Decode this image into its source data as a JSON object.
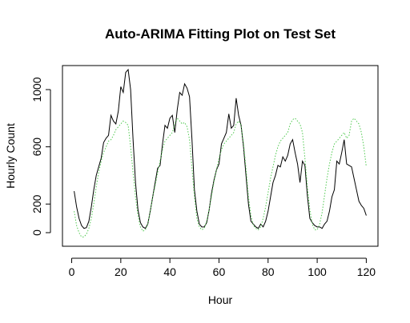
{
  "chart_data": {
    "type": "line",
    "title": "Auto-ARIMA Fitting Plot on Test Set",
    "x_label": "Hour",
    "y_label": "Hourly Count",
    "x": [
      1,
      2,
      3,
      4,
      5,
      6,
      7,
      8,
      9,
      10,
      11,
      12,
      13,
      14,
      15,
      16,
      17,
      18,
      19,
      20,
      21,
      22,
      23,
      24,
      25,
      26,
      27,
      28,
      29,
      30,
      31,
      32,
      33,
      34,
      35,
      36,
      37,
      38,
      39,
      40,
      41,
      42,
      43,
      44,
      45,
      46,
      47,
      48,
      49,
      50,
      51,
      52,
      53,
      54,
      55,
      56,
      57,
      58,
      59,
      60,
      61,
      62,
      63,
      64,
      65,
      66,
      67,
      68,
      69,
      70,
      71,
      72,
      73,
      74,
      75,
      76,
      77,
      78,
      79,
      80,
      81,
      82,
      83,
      84,
      85,
      86,
      87,
      88,
      89,
      90,
      91,
      92,
      93,
      94,
      95,
      96,
      97,
      98,
      99,
      100,
      101,
      102,
      103,
      104,
      105,
      106,
      107,
      108,
      109,
      110,
      111,
      112,
      113,
      114,
      115,
      116,
      117,
      118,
      119,
      120
    ],
    "series": [
      {
        "color": "#000000",
        "style": "solid",
        "values": [
          290,
          180,
          100,
          50,
          30,
          35,
          80,
          180,
          300,
          400,
          460,
          520,
          630,
          660,
          680,
          820,
          780,
          760,
          850,
          1020,
          980,
          1120,
          1140,
          1000,
          650,
          350,
          160,
          70,
          40,
          30,
          60,
          150,
          250,
          350,
          450,
          470,
          620,
          750,
          730,
          800,
          820,
          700,
          860,
          980,
          960,
          1040,
          1010,
          950,
          650,
          300,
          150,
          60,
          40,
          40,
          70,
          160,
          280,
          370,
          440,
          480,
          620,
          660,
          700,
          830,
          730,
          750,
          940,
          820,
          750,
          600,
          400,
          200,
          80,
          60,
          40,
          30,
          60,
          40,
          80,
          150,
          250,
          350,
          400,
          470,
          460,
          530,
          500,
          540,
          620,
          650,
          560,
          480,
          350,
          500,
          470,
          260,
          100,
          70,
          50,
          40,
          40,
          30,
          60,
          80,
          150,
          250,
          300,
          500,
          480,
          560,
          650,
          480,
          470,
          460,
          380,
          300,
          220,
          190,
          170,
          120
        ]
      },
      {
        "color": "#4fc94f",
        "style": "dotted",
        "values": [
          150,
          50,
          0,
          -30,
          -30,
          -10,
          30,
          100,
          200,
          320,
          420,
          500,
          560,
          600,
          640,
          650,
          680,
          720,
          740,
          760,
          780,
          770,
          750,
          600,
          420,
          250,
          120,
          40,
          10,
          20,
          60,
          150,
          250,
          330,
          420,
          500,
          580,
          640,
          660,
          680,
          700,
          760,
          800,
          780,
          760,
          770,
          740,
          650,
          450,
          250,
          100,
          40,
          20,
          30,
          80,
          160,
          260,
          360,
          440,
          520,
          580,
          620,
          640,
          660,
          680,
          700,
          760,
          780,
          750,
          620,
          450,
          250,
          120,
          50,
          30,
          20,
          40,
          100,
          180,
          280,
          380,
          460,
          540,
          600,
          640,
          660,
          680,
          700,
          760,
          790,
          800,
          780,
          760,
          700,
          520,
          320,
          160,
          60,
          20,
          20,
          60,
          140,
          260,
          380,
          480,
          560,
          620,
          640,
          660,
          680,
          700,
          660,
          680,
          780,
          800,
          780,
          760,
          700,
          600,
          460
        ]
      }
    ],
    "xlim": [
      -3.76,
      124.76
    ],
    "ylim": [
      -95,
      1168
    ],
    "xticks": [
      0,
      20,
      40,
      60,
      80,
      100,
      120
    ],
    "yticks": [
      0,
      200,
      600,
      1000
    ]
  }
}
